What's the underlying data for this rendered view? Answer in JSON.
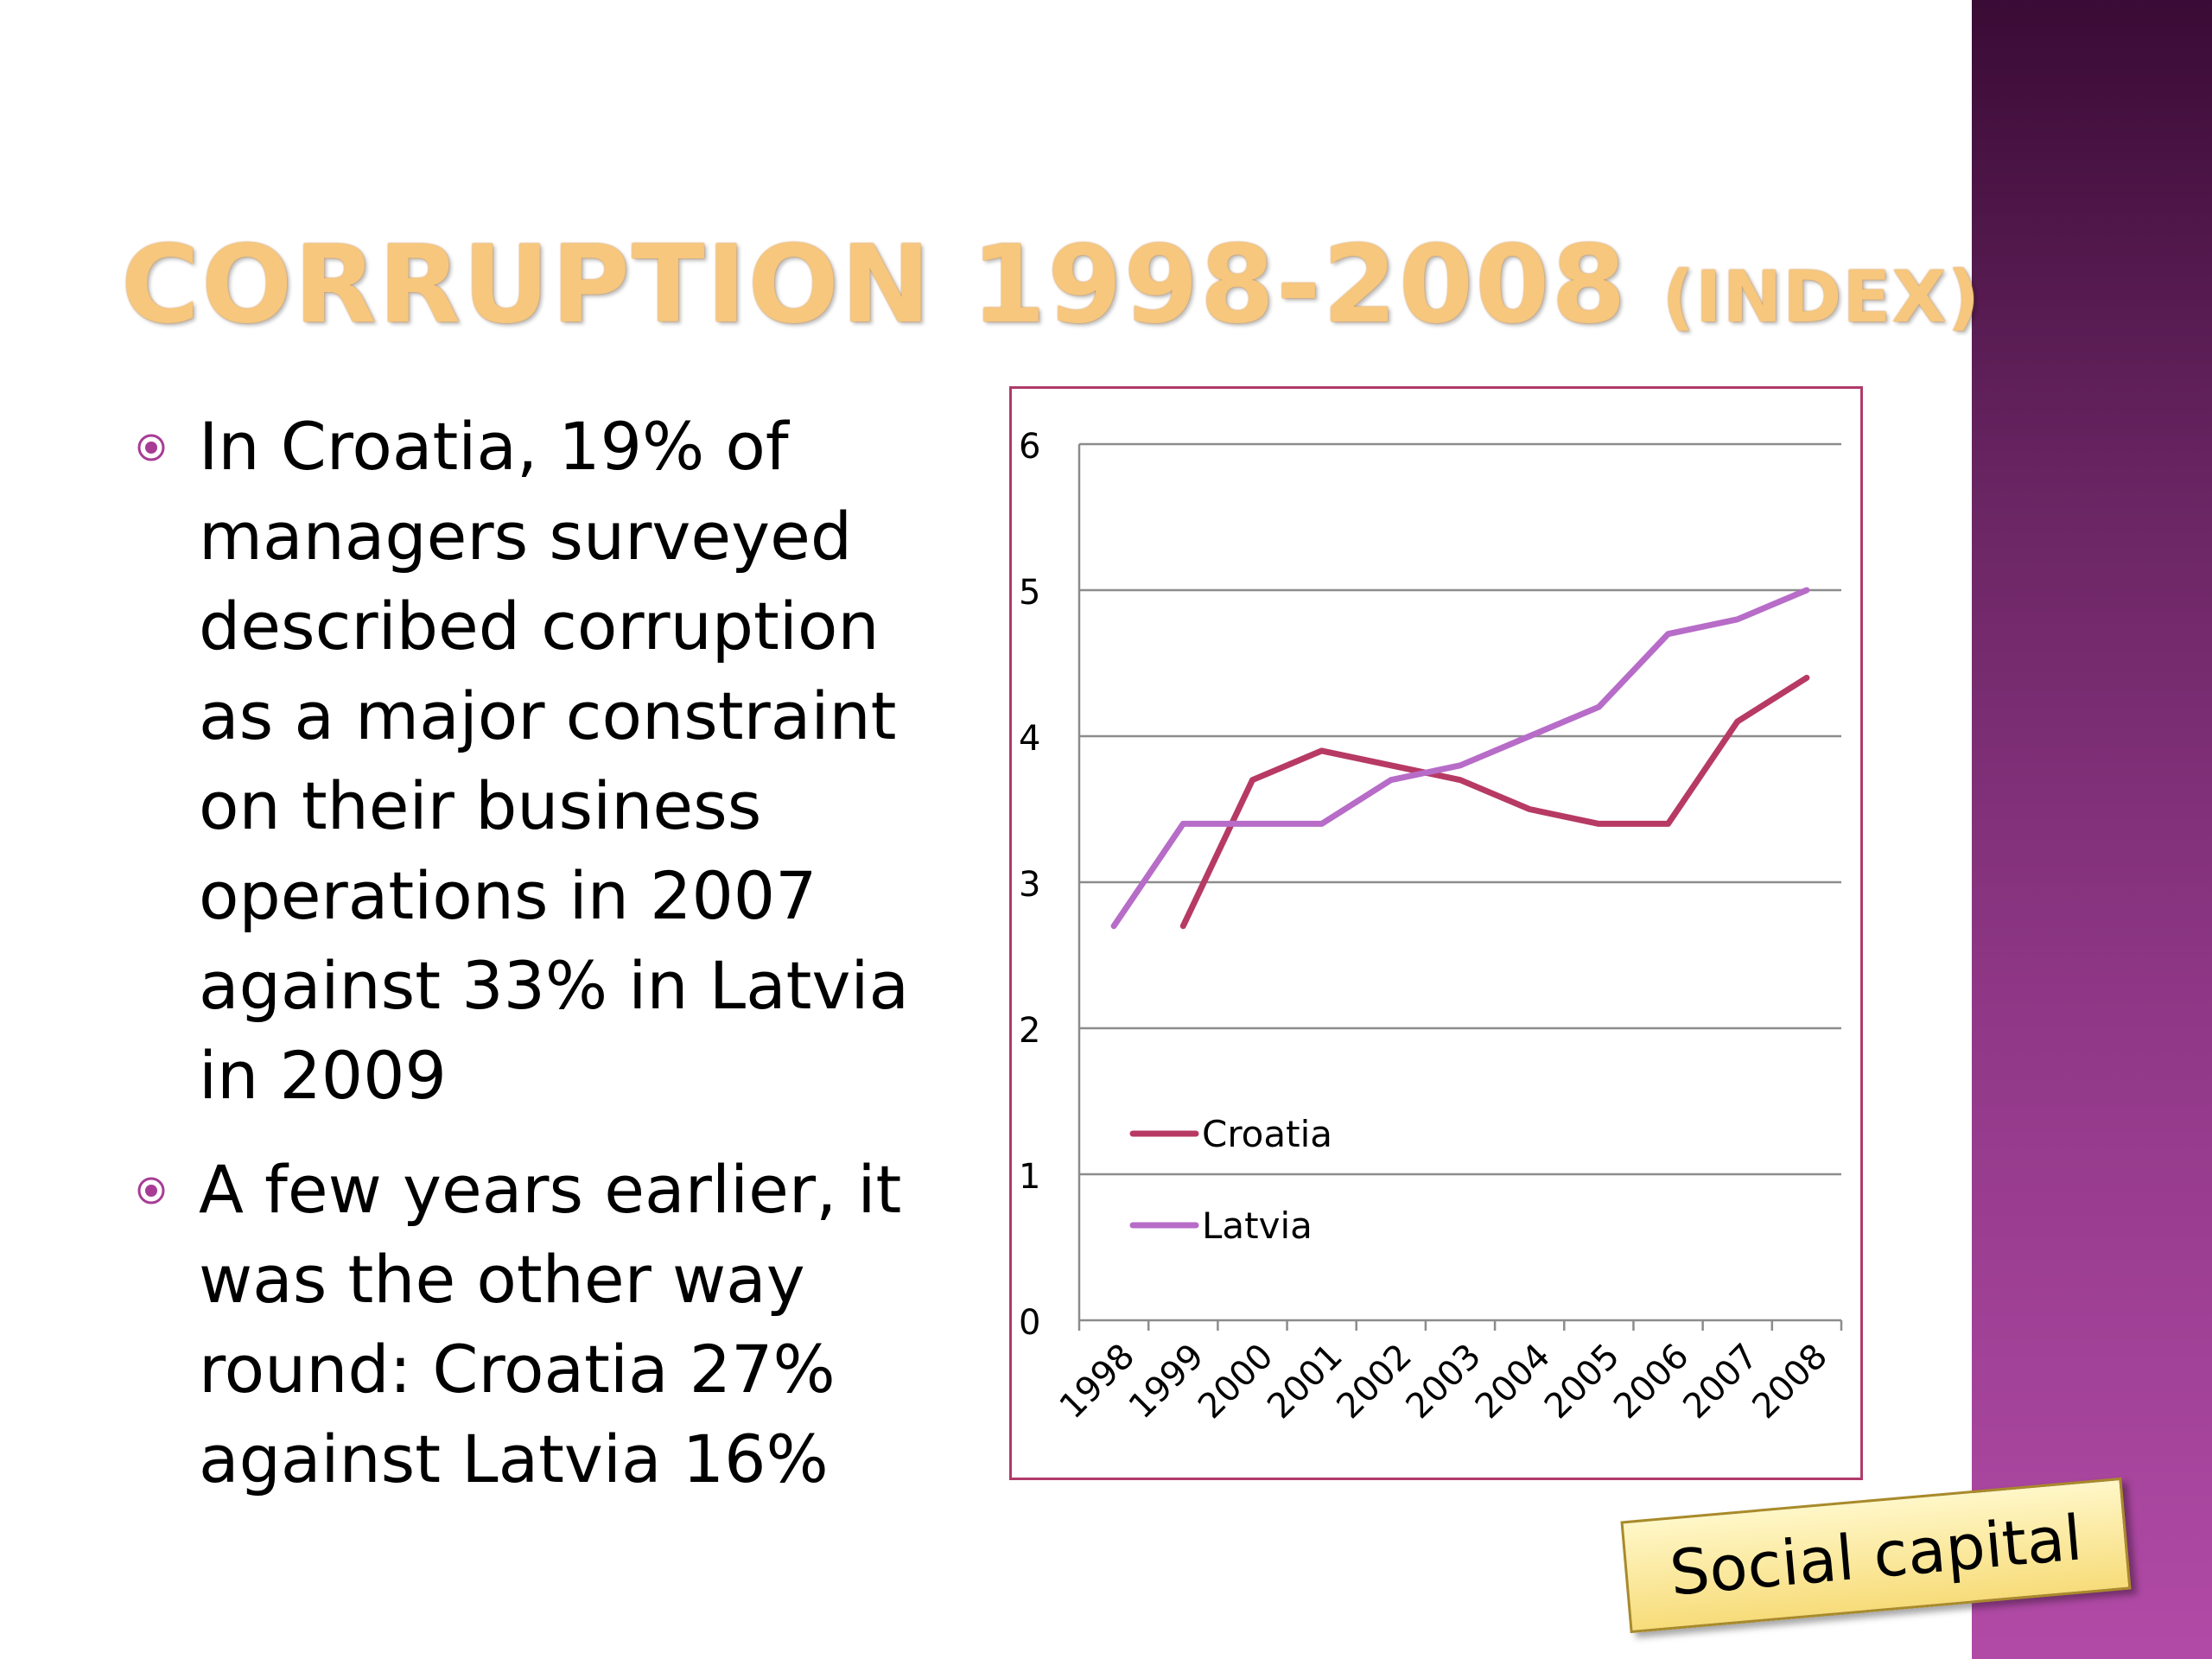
{
  "slide": {
    "title_main": "CORRUPTION 1998-2008",
    "title_sub": "(INDEX)",
    "bullets": [
      "In Croatia, 19% of managers surveyed described corruption as a major constraint on their business operations in 2007 against 33% in Latvia in 2009",
      "A few years earlier, it was the other way round: Croatia 27% against Latvia 16%"
    ],
    "callout": "Social capital"
  },
  "colors": {
    "title": "#f6c77d",
    "bullet": "#a83c95",
    "croatia": "#b73a64",
    "latvia": "#b76cc8",
    "chart_border": "#b03a6a",
    "band": "#8f3786"
  },
  "chart_data": {
    "type": "line",
    "categories": [
      "1998",
      "1999",
      "2000",
      "2001",
      "2002",
      "2003",
      "2004",
      "2005",
      "2006",
      "2007",
      "2008"
    ],
    "yticks": [
      "0",
      "1",
      "2",
      "3",
      "4",
      "5",
      "6"
    ],
    "ylim": [
      0,
      6
    ],
    "grid": true,
    "legend_position": "bottom-left",
    "series": [
      {
        "name": "Croatia",
        "color": "#b73a64",
        "values": [
          null,
          2.7,
          3.7,
          3.9,
          3.8,
          3.7,
          3.5,
          3.4,
          3.4,
          4.1,
          4.4
        ]
      },
      {
        "name": "Latvia",
        "color": "#b76cc8",
        "values": [
          2.7,
          3.4,
          3.4,
          3.4,
          3.7,
          3.8,
          4.0,
          4.2,
          4.7,
          4.8,
          5.0
        ]
      }
    ]
  }
}
